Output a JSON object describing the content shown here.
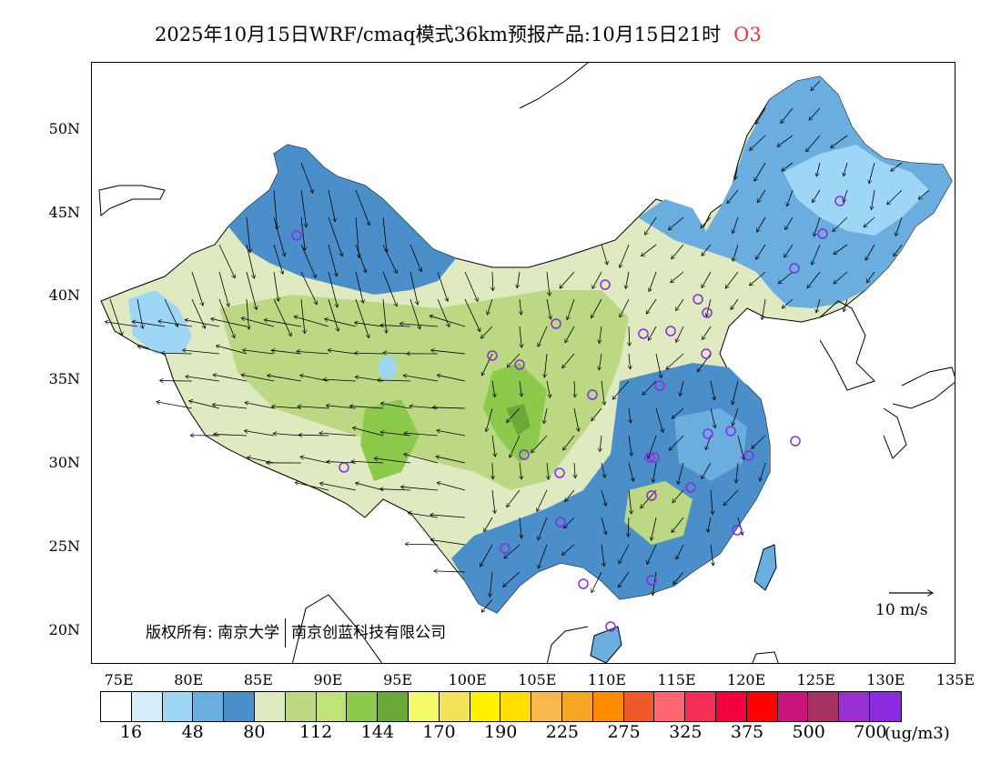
{
  "title": {
    "text": "2025年10月15日WRF/cmaq模式36km预报产品:10月15日21时",
    "species": "O3",
    "species_color": "#e53935"
  },
  "map": {
    "lon_range": [
      73,
      135
    ],
    "lat_range": [
      18,
      54
    ],
    "lat_ticks": [
      "50N",
      "45N",
      "40N",
      "35N",
      "30N",
      "25N",
      "20N"
    ],
    "lat_values": [
      50,
      45,
      40,
      35,
      30,
      25,
      20
    ],
    "lon_ticks": [
      "75E",
      "80E",
      "85E",
      "90E",
      "95E",
      "100E",
      "105E",
      "110E",
      "115E",
      "120E",
      "125E",
      "130E",
      "135E"
    ],
    "lon_values": [
      75,
      80,
      85,
      90,
      95,
      100,
      105,
      110,
      115,
      120,
      125,
      130,
      135
    ],
    "copyright_prefix": "版权所有:",
    "copyright_org1": "南京大学",
    "copyright_org2": "南京创蓝科技有限公司",
    "wind_reference_label": "10 m/s",
    "station_marker_color": "#8a2be2"
  },
  "legend": {
    "colors": [
      "#ffffff",
      "#d6eefb",
      "#9ed7f5",
      "#6aaee0",
      "#4a8fc9",
      "#dfeac0",
      "#bcd882",
      "#c2e27a",
      "#8cca4c",
      "#6aa83a",
      "#f3fb6a",
      "#f4e35a",
      "#fff200",
      "#ffdf00",
      "#f8b84b",
      "#f5a623",
      "#ff8c00",
      "#f05a28",
      "#ff6670",
      "#f52e55",
      "#f5003f",
      "#ff0000",
      "#c8147d",
      "#a63262",
      "#9b30d0",
      "#8a2be2"
    ],
    "labels": [
      "16",
      "48",
      "80",
      "112",
      "144",
      "170",
      "190",
      "225",
      "275",
      "325",
      "375",
      "500",
      "700"
    ],
    "units": "(ug/m3)"
  }
}
